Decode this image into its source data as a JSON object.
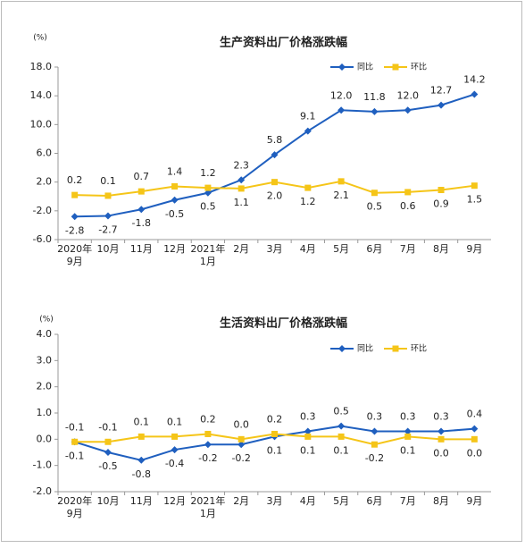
{
  "chart_data": [
    {
      "type": "line",
      "title": "生产资料出厂价格涨跌幅",
      "unit_label": "(%)",
      "categories": [
        "2020年\n9月",
        "10月",
        "11月",
        "12月",
        "2021年\n1月",
        "2月",
        "3月",
        "4月",
        "5月",
        "6月",
        "7月",
        "8月",
        "9月"
      ],
      "series": [
        {
          "name": "同比",
          "color": "#1f5fbf",
          "marker": "diamond",
          "values": [
            -2.8,
            -2.7,
            -1.8,
            -0.5,
            0.5,
            2.3,
            5.8,
            9.1,
            12.0,
            11.8,
            12.0,
            12.7,
            14.2
          ],
          "value_labels": [
            "-2.8",
            "-2.7",
            "-1.8",
            "-0.5",
            "0.5",
            "2.3",
            "5.8",
            "9.1",
            "12.0",
            "11.8",
            "12.0",
            "12.7",
            "14.2"
          ]
        },
        {
          "name": "环比",
          "color": "#f5c518",
          "marker": "square",
          "values": [
            0.2,
            0.1,
            0.7,
            1.4,
            1.2,
            1.1,
            2.0,
            1.2,
            2.1,
            0.5,
            0.6,
            0.9,
            1.5
          ],
          "value_labels": [
            "0.2",
            "0.1",
            "0.7",
            "1.4",
            "1.2",
            "1.1",
            "2.0",
            "1.2",
            "2.1",
            "0.5",
            "0.6",
            "0.9",
            "1.5"
          ]
        }
      ],
      "ylim": [
        -6,
        18
      ],
      "yticks": [
        {
          "value": -6,
          "label": "-6.0"
        },
        {
          "value": -2,
          "label": "-2.0"
        },
        {
          "value": 2,
          "label": "2.0"
        },
        {
          "value": 6,
          "label": "6.0"
        },
        {
          "value": 10,
          "label": "10.0"
        },
        {
          "value": 14,
          "label": "14.0"
        },
        {
          "value": 18,
          "label": "18.0"
        }
      ],
      "grid": false,
      "legend": "top-right"
    },
    {
      "type": "line",
      "title": "生活资料出厂价格涨跌幅",
      "unit_label": "(%)",
      "categories": [
        "2020年\n9月",
        "10月",
        "11月",
        "12月",
        "2021年\n1月",
        "2月",
        "3月",
        "4月",
        "5月",
        "6月",
        "7月",
        "8月",
        "9月"
      ],
      "series": [
        {
          "name": "同比",
          "color": "#1f5fbf",
          "marker": "diamond",
          "values": [
            -0.1,
            -0.5,
            -0.8,
            -0.4,
            -0.2,
            -0.2,
            0.1,
            0.3,
            0.5,
            0.3,
            0.3,
            0.3,
            0.4
          ]
        },
        {
          "name": "环比",
          "color": "#f5c518",
          "marker": "square",
          "values": [
            -0.1,
            -0.1,
            0.1,
            0.1,
            0.2,
            0.0,
            0.2,
            0.1,
            0.1,
            -0.2,
            0.1,
            0.0,
            0.0
          ],
          "value_labels": [
            "-0.1",
            "-0.1",
            "0.1",
            "0.1",
            "0.2",
            "0.0",
            "0.2",
            "0.1",
            "0.1",
            "-0.2",
            "0.1",
            "0.0",
            "0.0"
          ]
        }
      ],
      "ylim": [
        -2,
        4
      ],
      "yticks": [
        {
          "value": -2,
          "label": "-2.0"
        },
        {
          "value": -1,
          "label": "-1.0"
        },
        {
          "value": 0,
          "label": "0.0"
        },
        {
          "value": 1,
          "label": "1.0"
        },
        {
          "value": 2,
          "label": "2.0"
        },
        {
          "value": 3,
          "label": "3.0"
        },
        {
          "value": 4,
          "label": "4.0"
        }
      ],
      "grid": false,
      "legend": "top-right"
    }
  ]
}
